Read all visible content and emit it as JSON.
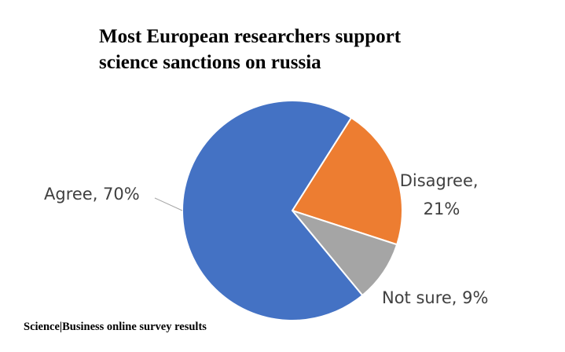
{
  "title_lines": [
    "Most European researchers support",
    "science sanctions on russia"
  ],
  "source": "Science|Business online survey results",
  "chart_data": {
    "type": "pie",
    "title": "Most European researchers support science sanctions on russia",
    "categories": [
      "Agree",
      "Disagree",
      "Not sure"
    ],
    "values": [
      70,
      21,
      9
    ],
    "unit": "%",
    "colors": [
      "#4472C4",
      "#ED7D31",
      "#A5A5A5"
    ],
    "labels": [
      {
        "line1": "Agree, 70%",
        "line2": ""
      },
      {
        "line1": "Disagree,",
        "line2": "21%"
      },
      {
        "line1": "Not sure, 9%",
        "line2": ""
      }
    ]
  }
}
